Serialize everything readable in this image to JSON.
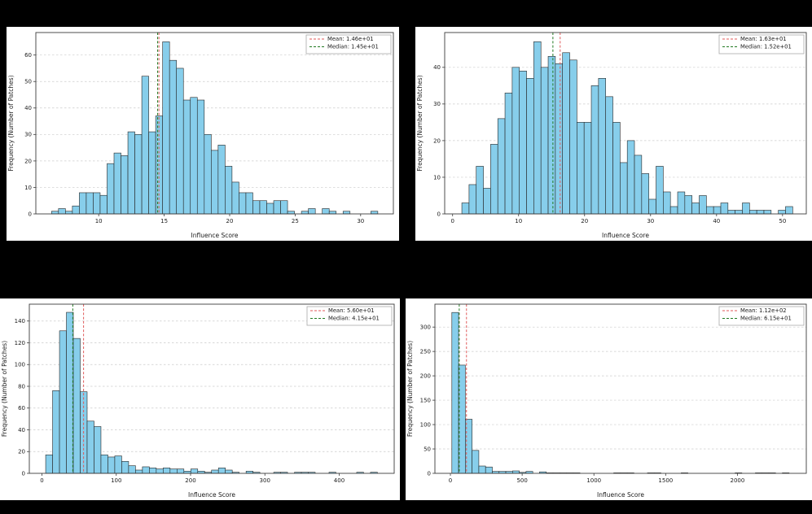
{
  "style": {
    "page_bg": "#000000",
    "panel_bg": "#ffffff",
    "bar_fill": "#87ceeb",
    "bar_edge": "#262626",
    "grid_color": "#cccccc",
    "spine_color": "#3c3c3c",
    "text_color": "#1a1a1a",
    "mean_color": "#e05a5a",
    "median_color": "#217a21",
    "legend_border": "#aaaaaa",
    "legend_bg": "#ffffff"
  },
  "chart_data": [
    {
      "type": "bar",
      "panel": "top-left",
      "title": "",
      "xlabel": "Influence Score",
      "ylabel": "Frequency (Number of Patches)",
      "legend_position": "upper right",
      "grid": "horizontal-dashed",
      "x0": 6.4,
      "bin_width": 0.53,
      "values": [
        1,
        2,
        1,
        3,
        8,
        8,
        8,
        7,
        19,
        23,
        22,
        31,
        30,
        52,
        31,
        37,
        65,
        58,
        55,
        43,
        44,
        43,
        30,
        24,
        26,
        18,
        12,
        8,
        8,
        5,
        5,
        4,
        5,
        5,
        1,
        0,
        1,
        2,
        0,
        2,
        1,
        0,
        1,
        0,
        0,
        0,
        1
      ],
      "xlim": [
        5.2,
        32.5
      ],
      "ylim": [
        0,
        68.5
      ],
      "xticks": [
        10,
        15,
        20,
        25,
        30
      ],
      "yticks": [
        0,
        10,
        20,
        30,
        40,
        50,
        60
      ],
      "mean": {
        "value": 14.6,
        "label": "Mean: 1.46e+01"
      },
      "median": {
        "value": 14.5,
        "label": "Median: 1.45e+01"
      }
    },
    {
      "type": "bar",
      "panel": "top-right",
      "title": "",
      "xlabel": "Influence Score",
      "ylabel": "Frequency (Number of Patches)",
      "legend_position": "upper right",
      "grid": "horizontal-dashed",
      "x0": 1.4,
      "bin_width": 1.09,
      "values": [
        3,
        8,
        13,
        7,
        19,
        26,
        33,
        40,
        39,
        37,
        47,
        40,
        43,
        41,
        44,
        42,
        25,
        25,
        35,
        37,
        32,
        25,
        14,
        20,
        16,
        11,
        4,
        13,
        6,
        2,
        6,
        5,
        3,
        5,
        2,
        2,
        3,
        1,
        1,
        3,
        1,
        1,
        1,
        0,
        1,
        2
      ],
      "xlim": [
        -1.2,
        53.6
      ],
      "ylim": [
        0,
        49.5
      ],
      "xticks": [
        0,
        10,
        20,
        30,
        40,
        50
      ],
      "yticks": [
        0,
        10,
        20,
        30,
        40
      ],
      "mean": {
        "value": 16.3,
        "label": "Mean: 1.63e+01"
      },
      "median": {
        "value": 15.2,
        "label": "Median: 1.52e+01"
      }
    },
    {
      "type": "bar",
      "panel": "bottom-left",
      "title": "",
      "xlabel": "Influence Score",
      "ylabel": "Frequency (Number of Patches)",
      "legend_position": "upper right",
      "grid": "horizontal-dashed",
      "x0": 5,
      "bin_width": 9.3,
      "values": [
        17,
        76,
        131,
        148,
        124,
        75,
        48,
        43,
        17,
        15,
        16,
        11,
        7,
        3,
        6,
        5,
        4,
        5,
        4,
        4,
        2,
        4,
        2,
        1,
        3,
        5,
        3,
        1,
        0,
        2,
        1,
        0,
        0,
        1,
        1,
        0,
        1,
        1,
        1,
        0,
        0,
        1,
        0,
        0,
        0,
        1,
        0,
        1
      ],
      "xlim": [
        -17,
        474
      ],
      "ylim": [
        0,
        155.5
      ],
      "xticks": [
        0,
        100,
        200,
        300,
        400
      ],
      "yticks": [
        0,
        20,
        40,
        60,
        80,
        100,
        120,
        140
      ],
      "mean": {
        "value": 56.0,
        "label": "Mean: 5.60e+01"
      },
      "median": {
        "value": 41.5,
        "label": "Median: 4.15e+01"
      }
    },
    {
      "type": "bar",
      "panel": "bottom-right",
      "title": "",
      "xlabel": "Influence Score",
      "ylabel": "Frequency (Number of Patches)",
      "legend_position": "upper right",
      "grid": "horizontal-dashed",
      "x0": 10,
      "bin_width": 47,
      "values": [
        330,
        222,
        111,
        47,
        15,
        13,
        4,
        4,
        4,
        5,
        2,
        4,
        0,
        3,
        1,
        1,
        1,
        1,
        1,
        0,
        0,
        0,
        0,
        0,
        1,
        1,
        1,
        0,
        0,
        1,
        1,
        0,
        0,
        0,
        1,
        0,
        0,
        0,
        0,
        0,
        0,
        0,
        1,
        0,
        0,
        1,
        1,
        1,
        0,
        1
      ],
      "xlim": [
        -108,
        2480
      ],
      "ylim": [
        0,
        347
      ],
      "xticks": [
        0,
        500,
        1000,
        1500,
        2000
      ],
      "yticks": [
        0,
        50,
        100,
        150,
        200,
        250,
        300
      ],
      "mean": {
        "value": 112.0,
        "label": "Mean: 1.12e+02"
      },
      "median": {
        "value": 61.5,
        "label": "Median: 6.15e+01"
      }
    }
  ]
}
